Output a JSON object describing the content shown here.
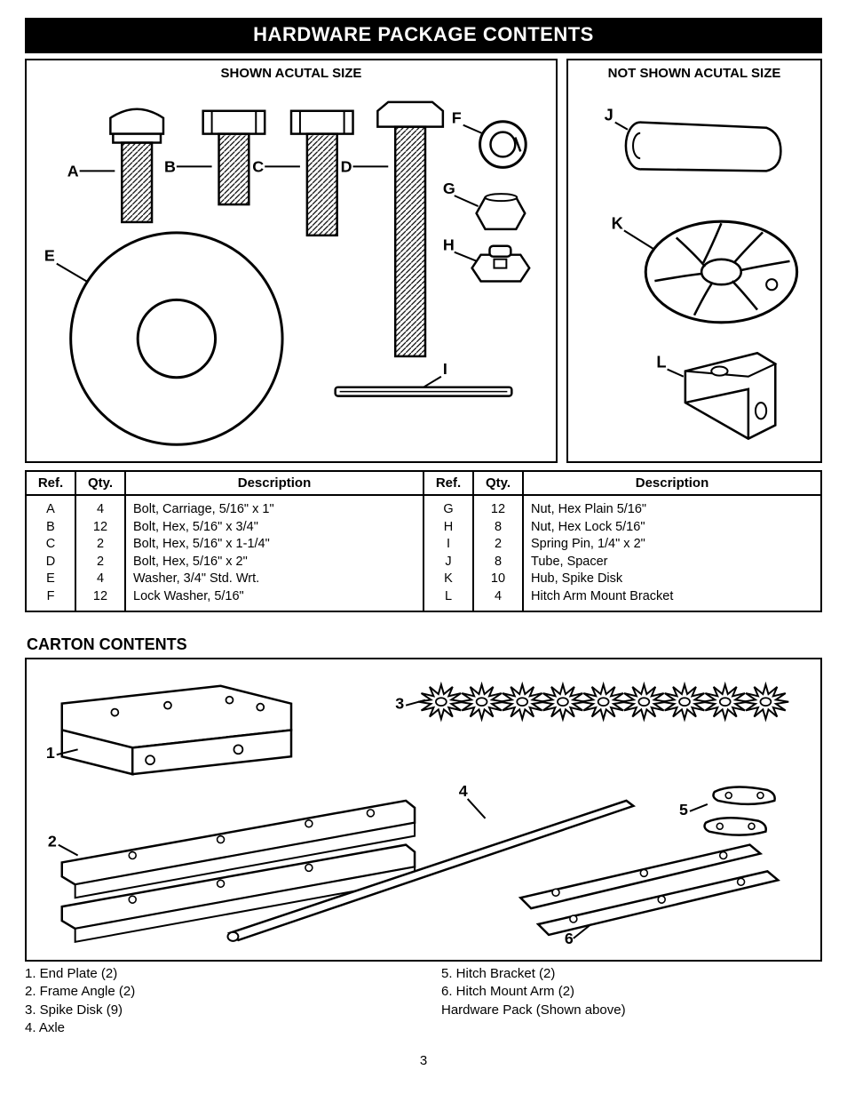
{
  "banner": "HARDWARE PACKAGE CONTENTS",
  "panelLeftTitle": "SHOWN ACUTAL SIZE",
  "panelRightTitle": "NOT SHOWN ACUTAL SIZE",
  "hardwareLabels": {
    "A": "A",
    "B": "B",
    "C": "C",
    "D": "D",
    "E": "E",
    "F": "F",
    "G": "G",
    "H": "H",
    "I": "I",
    "J": "J",
    "K": "K",
    "L": "L"
  },
  "hwTable": {
    "headers": {
      "ref": "Ref.",
      "qty": "Qty.",
      "desc": "Description"
    },
    "left": [
      {
        "ref": "A",
        "qty": "4",
        "desc": "Bolt, Carriage, 5/16\" x 1\""
      },
      {
        "ref": "B",
        "qty": "12",
        "desc": "Bolt, Hex, 5/16\" x 3/4\""
      },
      {
        "ref": "C",
        "qty": "2",
        "desc": "Bolt, Hex, 5/16\" x 1-1/4\""
      },
      {
        "ref": "D",
        "qty": "2",
        "desc": "Bolt, Hex, 5/16\" x 2\""
      },
      {
        "ref": "E",
        "qty": "4",
        "desc": "Washer, 3/4\" Std. Wrt."
      },
      {
        "ref": "F",
        "qty": "12",
        "desc": "Lock Washer, 5/16\""
      }
    ],
    "right": [
      {
        "ref": "G",
        "qty": "12",
        "desc": "Nut, Hex Plain  5/16\""
      },
      {
        "ref": "H",
        "qty": "8",
        "desc": "Nut, Hex Lock 5/16\""
      },
      {
        "ref": "I",
        "qty": "2",
        "desc": "Spring Pin, 1/4\" x 2\""
      },
      {
        "ref": "J",
        "qty": "8",
        "desc": "Tube, Spacer"
      },
      {
        "ref": "K",
        "qty": "10",
        "desc": "Hub, Spike Disk"
      },
      {
        "ref": "L",
        "qty": "4",
        "desc": "Hitch Arm Mount Bracket"
      }
    ]
  },
  "cartonTitle": "CARTON CONTENTS",
  "cartonLabels": {
    "1": "1",
    "2": "2",
    "3": "3",
    "4": "4",
    "5": "5",
    "6": "6"
  },
  "cartonLegend": {
    "left": [
      "1.  End Plate (2)",
      "2.  Frame Angle (2)",
      "3.  Spike Disk (9)",
      "4.  Axle"
    ],
    "right": [
      "5.  Hitch Bracket (2)",
      "6.  Hitch Mount Arm (2)",
      "     Hardware Pack (Shown above)"
    ]
  },
  "pageNumber": "3",
  "style": {
    "stroke": "#000000",
    "strokeWidth": 2,
    "hatchColor": "#000000",
    "background": "#ffffff",
    "fontFamily": "Arial"
  }
}
